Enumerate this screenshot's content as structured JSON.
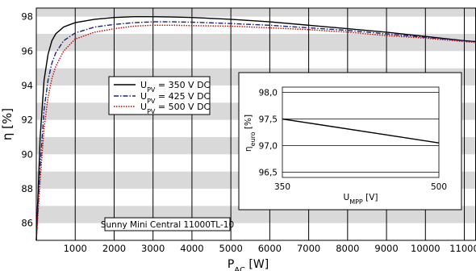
{
  "chart_data": [
    {
      "type": "line",
      "xlabel_main": "P",
      "xlabel_sub": "AC",
      "xlabel_unit": " [W]",
      "ylabel_main": "η",
      "ylabel_unit": " [%]",
      "xlim": [
        0,
        11300
      ],
      "ylim": [
        85,
        98.5
      ],
      "xticks": [
        1000,
        2000,
        3000,
        4000,
        5000,
        6000,
        7000,
        8000,
        9000,
        10000,
        11000
      ],
      "yticks": [
        86,
        88,
        90,
        92,
        94,
        96,
        98
      ],
      "grid": "vertical lines, alternating gray/white horizontal bands",
      "legend": {
        "placement": "center-left",
        "entries": [
          {
            "prefix": "U",
            "sub": "PV",
            "text": " = 350 V DC",
            "style": "solid",
            "color": "#000000"
          },
          {
            "prefix": "U",
            "sub": "PV",
            "text": " = 425 V DC",
            "style": "dash-dot",
            "color": "#1a237e"
          },
          {
            "prefix": "U",
            "sub": "PV",
            "text": " = 500 V DC",
            "style": "dotted",
            "color": "#cc0000"
          }
        ]
      },
      "series": [
        {
          "name": "U_PV = 350 V DC",
          "x": [
            0,
            100,
            200,
            300,
            400,
            500,
            700,
            1000,
            1500,
            2000,
            2500,
            3000,
            3500,
            4000,
            5000,
            6000,
            7000,
            8000,
            9000,
            10000,
            11000,
            11300
          ],
          "y": [
            85.0,
            91.0,
            94.3,
            95.8,
            96.6,
            97.0,
            97.4,
            97.65,
            97.85,
            97.95,
            98.0,
            98.0,
            97.98,
            97.95,
            97.85,
            97.7,
            97.5,
            97.3,
            97.1,
            96.85,
            96.6,
            96.55
          ]
        },
        {
          "name": "U_PV = 425 V DC",
          "x": [
            0,
            100,
            200,
            300,
            400,
            500,
            700,
            1000,
            1500,
            2000,
            2500,
            3000,
            3500,
            4000,
            5000,
            6000,
            7000,
            8000,
            9000,
            10000,
            11000,
            11300
          ],
          "y": [
            85.0,
            89.3,
            92.6,
            94.3,
            95.3,
            95.9,
            96.6,
            97.05,
            97.4,
            97.55,
            97.65,
            97.7,
            97.7,
            97.68,
            97.6,
            97.5,
            97.35,
            97.2,
            97.0,
            96.8,
            96.6,
            96.55
          ]
        },
        {
          "name": "U_PV = 500 V DC",
          "x": [
            0,
            100,
            200,
            300,
            400,
            500,
            700,
            1000,
            1500,
            2000,
            2500,
            3000,
            3500,
            4000,
            5000,
            6000,
            7000,
            8000,
            9000,
            10000,
            11000,
            11300
          ],
          "y": [
            85.0,
            88.5,
            91.5,
            93.3,
            94.4,
            95.1,
            96.0,
            96.7,
            97.1,
            97.3,
            97.45,
            97.5,
            97.5,
            97.48,
            97.45,
            97.35,
            97.25,
            97.1,
            96.9,
            96.75,
            96.55,
            96.5
          ]
        }
      ],
      "annotation": "Sunny Mini Central 11000TL-10"
    },
    {
      "type": "line",
      "xlabel_main": "U",
      "xlabel_sub": "MPP",
      "xlabel_unit": " [V]",
      "ylabel_main": "η",
      "ylabel_sub": "euro",
      "ylabel_unit": " [%]",
      "xlim": [
        350,
        500
      ],
      "ylim": [
        96.4,
        98.1
      ],
      "xticks": [
        "350",
        "500"
      ],
      "yticks": [
        "96,5",
        "97,0",
        "97,5",
        "98,0"
      ],
      "grid": "horizontal lines",
      "series": [
        {
          "x": [
            350,
            500
          ],
          "y": [
            97.5,
            97.05
          ]
        }
      ]
    }
  ]
}
